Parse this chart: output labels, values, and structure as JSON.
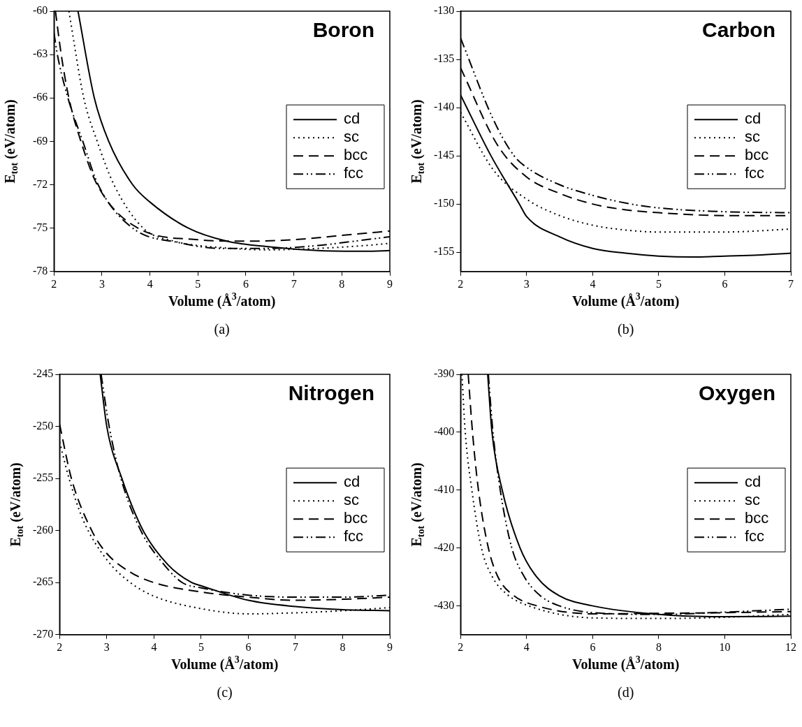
{
  "chart_data": [
    {
      "type": "line",
      "title": "Boron",
      "xlabel": "Volume (Å$^{3}$/atom)",
      "ylabel": "E$_{tot}$ (eV/atom)",
      "annotations": [
        "(a)"
      ],
      "xlim": [
        2,
        9
      ],
      "xticks": [
        2,
        3,
        4,
        5,
        6,
        7,
        8,
        9
      ],
      "ylim": [
        -78,
        -60
      ],
      "yticks": [
        -78,
        -75,
        -72,
        -69,
        -66,
        -63,
        -60
      ],
      "grid": false,
      "legend": "right",
      "series": [
        {
          "name": "cd",
          "color": "#000000",
          "line_style": "solid",
          "x": [
            2.5,
            2.84,
            3.14,
            3.64,
            4,
            4.8,
            5.6,
            6.5,
            7.5,
            8.5,
            9
          ],
          "values": [
            -60,
            -66,
            -69,
            -72,
            -73.2,
            -75,
            -75.9,
            -76.3,
            -76.55,
            -76.6,
            -76.55
          ]
        },
        {
          "name": "sc",
          "color": "#000000",
          "line_style": "dotted",
          "x": [
            2.31,
            2.62,
            2.9,
            3.25,
            3.86,
            4.5,
            5.5,
            6.5,
            7.5,
            8.5,
            9
          ],
          "values": [
            -60,
            -66,
            -69,
            -72,
            -75,
            -75.9,
            -76.35,
            -76.5,
            -76.4,
            -76.2,
            -76.05
          ]
        },
        {
          "name": "bcc",
          "color": "#000000",
          "line_style": "dashed",
          "x": [
            2.03,
            2.15,
            2.31,
            2.56,
            2.9,
            3.75,
            5,
            6,
            7,
            8,
            9
          ],
          "values": [
            -60,
            -63,
            -66,
            -69,
            -72,
            -75,
            -75.8,
            -75.9,
            -75.8,
            -75.5,
            -75.2
          ]
        },
        {
          "name": "fcc",
          "color": "#000000",
          "line_style": "dashdot",
          "x": [
            2,
            2.07,
            2.29,
            2.6,
            2.92,
            3.64,
            4.6,
            5.5,
            6.5,
            7.5,
            8.5,
            9
          ],
          "values": [
            -61.5,
            -63,
            -66,
            -69,
            -72,
            -75,
            -76,
            -76.4,
            -76.4,
            -76.2,
            -75.8,
            -75.6
          ]
        }
      ]
    },
    {
      "type": "line",
      "title": "Carbon",
      "xlabel": "Volume (Å$^{3}$/atom)",
      "ylabel": "E$_{tot}$ (eV/atom)",
      "annotations": [
        "(b)"
      ],
      "xlim": [
        2,
        7
      ],
      "xticks": [
        2,
        3,
        4,
        5,
        6,
        7
      ],
      "ylim": [
        -157,
        -130
      ],
      "yticks": [
        -155,
        -150,
        -145,
        -140,
        -135,
        -130
      ],
      "grid": false,
      "legend": "right",
      "series": [
        {
          "name": "cd",
          "color": "#000000",
          "line_style": "solid",
          "x": [
            2,
            2.46,
            2.89,
            3,
            3.5,
            4,
            4.5,
            5,
            5.5,
            6,
            6.5,
            7
          ],
          "values": [
            -138.7,
            -145,
            -150,
            -151.3,
            -153.4,
            -154.6,
            -155.1,
            -155.4,
            -155.5,
            -155.4,
            -155.3,
            -155.1
          ]
        },
        {
          "name": "sc",
          "color": "#000000",
          "line_style": "dotted",
          "x": [
            2,
            2.5,
            3,
            3.5,
            4,
            4.5,
            5,
            6,
            7
          ],
          "values": [
            -140.5,
            -146.5,
            -149.5,
            -151.2,
            -152.2,
            -152.7,
            -152.9,
            -152.9,
            -152.6
          ]
        },
        {
          "name": "bcc",
          "color": "#000000",
          "line_style": "dashed",
          "x": [
            2,
            2.56,
            3,
            3.5,
            4,
            4.5,
            5,
            6,
            7
          ],
          "values": [
            -135.9,
            -143.9,
            -147.2,
            -148.9,
            -150,
            -150.6,
            -150.9,
            -151.2,
            -151.2
          ]
        },
        {
          "name": "fcc",
          "color": "#000000",
          "line_style": "dashdot",
          "x": [
            2,
            2.5,
            2.81,
            3,
            3.5,
            4,
            4.5,
            5,
            6,
            7
          ],
          "values": [
            -132.8,
            -141.3,
            -145,
            -146.2,
            -148,
            -149.1,
            -149.9,
            -150.4,
            -150.8,
            -150.9
          ]
        }
      ]
    },
    {
      "type": "line",
      "title": "Nitrogen",
      "xlabel": "Volume (Å$^{3}$/atom)",
      "ylabel": "E$_{tot}$ (eV/atom)",
      "annotations": [
        "(c)"
      ],
      "xlim": [
        2,
        9
      ],
      "xticks": [
        2,
        3,
        4,
        5,
        6,
        7,
        8,
        9
      ],
      "ylim": [
        -270,
        -245
      ],
      "yticks": [
        -270,
        -265,
        -260,
        -255,
        -250,
        -245
      ],
      "grid": false,
      "legend": "right",
      "series": [
        {
          "name": "cd",
          "color": "#000000",
          "line_style": "solid",
          "x": [
            2.86,
            3,
            3.32,
            3.77,
            4.3,
            4.8,
            5,
            6,
            7,
            8,
            9
          ],
          "values": [
            -245,
            -250,
            -255,
            -260,
            -263.3,
            -265,
            -265.3,
            -266.7,
            -267.3,
            -267.6,
            -267.7
          ]
        },
        {
          "name": "sc",
          "color": "#000000",
          "line_style": "dotted",
          "x": [
            2,
            2.2,
            2.5,
            3,
            3.5,
            4,
            5,
            6,
            7,
            8,
            9
          ],
          "values": [
            -251.5,
            -255,
            -259,
            -262.8,
            -265,
            -266.3,
            -267.5,
            -268,
            -267.9,
            -267.7,
            -267.4
          ]
        },
        {
          "name": "bcc",
          "color": "#000000",
          "line_style": "dashed",
          "x": [
            2,
            2.25,
            2.68,
            3,
            3.5,
            4,
            5,
            6,
            7,
            8,
            9
          ],
          "values": [
            -249.8,
            -255,
            -260,
            -262.2,
            -264,
            -265,
            -265.9,
            -266.4,
            -266.7,
            -266.6,
            -266.4
          ]
        },
        {
          "name": "fcc",
          "color": "#000000",
          "line_style": "dashdot",
          "x": [
            2.88,
            3.05,
            3.3,
            3.72,
            4.2,
            4.6,
            5,
            6,
            7,
            8,
            9
          ],
          "values": [
            -245,
            -250,
            -255,
            -260,
            -263.2,
            -265,
            -265.5,
            -266.2,
            -266.4,
            -266.4,
            -266.2
          ]
        }
      ]
    },
    {
      "type": "line",
      "title": "Oxygen",
      "xlabel": "Volume (Å$^{3}$/atom)",
      "ylabel": "E$_{tot}$ (eV/atom)",
      "annotations": [
        "(d)"
      ],
      "xlim": [
        2,
        12
      ],
      "xticks": [
        2,
        4,
        6,
        8,
        10,
        12
      ],
      "ylim": [
        -435,
        -390
      ],
      "yticks": [
        -430,
        -420,
        -410,
        -400,
        -390
      ],
      "grid": false,
      "legend": "right",
      "series": [
        {
          "name": "cd",
          "color": "#000000",
          "line_style": "solid",
          "x": [
            2.82,
            2.95,
            3.26,
            3.8,
            4.3,
            5,
            5.98,
            8,
            10,
            12
          ],
          "values": [
            -390,
            -400,
            -410,
            -420,
            -425,
            -428.3,
            -430,
            -431.5,
            -431.9,
            -431.8
          ]
        },
        {
          "name": "sc",
          "color": "#000000",
          "line_style": "dotted",
          "x": [
            2.04,
            2.14,
            2.34,
            2.63,
            2.96,
            3.4,
            4.05,
            6,
            8,
            10,
            12
          ],
          "values": [
            -390,
            -400,
            -410,
            -420,
            -425,
            -428,
            -430,
            -432.1,
            -432.2,
            -432,
            -431.5
          ]
        },
        {
          "name": "bcc",
          "color": "#000000",
          "line_style": "dashed",
          "x": [
            2.23,
            2.36,
            2.54,
            2.84,
            3.13,
            3.6,
            4.3,
            6,
            8,
            10,
            12
          ],
          "values": [
            -390,
            -400,
            -410,
            -420,
            -425,
            -428.2,
            -430,
            -431.4,
            -431.3,
            -431.2,
            -431
          ]
        },
        {
          "name": "fcc",
          "color": "#000000",
          "line_style": "dashdot",
          "x": [
            2.84,
            2.98,
            3.2,
            3.55,
            3.93,
            4.4,
            4.98,
            6,
            8,
            10,
            12
          ],
          "values": [
            -390,
            -400,
            -410,
            -420,
            -425,
            -428.2,
            -430,
            -431.2,
            -431.5,
            -431.1,
            -430.6
          ]
        }
      ]
    }
  ]
}
